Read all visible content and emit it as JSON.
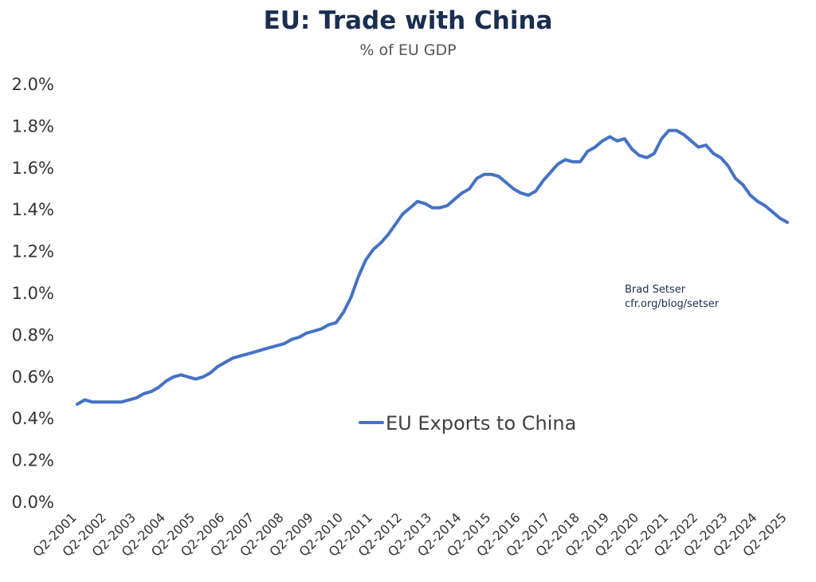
{
  "chart_data": {
    "type": "line",
    "title": "EU: Trade with China",
    "subtitle": "% of EU GDP",
    "xlabel": "",
    "ylabel": "",
    "ylim": [
      0,
      2.0
    ],
    "y_ticks": [
      "0.0%",
      "0.2%",
      "0.4%",
      "0.6%",
      "0.8%",
      "1.0%",
      "1.2%",
      "1.4%",
      "1.6%",
      "1.8%",
      "2.0%"
    ],
    "x_tick_labels": [
      "Q2-2001",
      "Q2-2002",
      "Q2-2003",
      "Q2-2004",
      "Q2-2005",
      "Q2-2006",
      "Q2-2007",
      "Q2-2008",
      "Q2-2009",
      "Q2-2010",
      "Q2-2011",
      "Q2-2012",
      "Q2-2013",
      "Q2-2014",
      "Q2-2015",
      "Q2-2016",
      "Q2-2017",
      "Q2-2018",
      "Q2-2019",
      "Q2-2020",
      "Q2-2021",
      "Q2-2022",
      "Q2-2023",
      "Q2-2024",
      "Q2-2025"
    ],
    "grid": false,
    "legend_position": "center-bottom",
    "annotation": [
      "Brad Setser",
      "cfr.org/blog/setser"
    ],
    "series": [
      {
        "name": "EU Exports to China",
        "color": "#4472c4",
        "x": [
          "Q2-2001",
          "Q3-2001",
          "Q4-2001",
          "Q1-2002",
          "Q2-2002",
          "Q3-2002",
          "Q4-2002",
          "Q1-2003",
          "Q2-2003",
          "Q3-2003",
          "Q4-2003",
          "Q1-2004",
          "Q2-2004",
          "Q3-2004",
          "Q4-2004",
          "Q1-2005",
          "Q2-2005",
          "Q3-2005",
          "Q4-2005",
          "Q1-2006",
          "Q2-2006",
          "Q3-2006",
          "Q4-2006",
          "Q1-2007",
          "Q2-2007",
          "Q3-2007",
          "Q4-2007",
          "Q1-2008",
          "Q2-2008",
          "Q3-2008",
          "Q4-2008",
          "Q1-2009",
          "Q2-2009",
          "Q3-2009",
          "Q4-2009",
          "Q1-2010",
          "Q2-2010",
          "Q3-2010",
          "Q4-2010",
          "Q1-2011",
          "Q2-2011",
          "Q3-2011",
          "Q4-2011",
          "Q1-2012",
          "Q2-2012",
          "Q3-2012",
          "Q4-2012",
          "Q1-2013",
          "Q2-2013",
          "Q3-2013",
          "Q4-2013",
          "Q1-2014",
          "Q2-2014",
          "Q3-2014",
          "Q4-2014",
          "Q1-2015",
          "Q2-2015",
          "Q3-2015",
          "Q4-2015",
          "Q1-2016",
          "Q2-2016",
          "Q3-2016",
          "Q4-2016",
          "Q1-2017",
          "Q2-2017",
          "Q3-2017",
          "Q4-2017",
          "Q1-2018",
          "Q2-2018",
          "Q3-2018",
          "Q4-2018",
          "Q1-2019",
          "Q2-2019",
          "Q3-2019",
          "Q4-2019",
          "Q1-2020",
          "Q2-2020",
          "Q3-2020",
          "Q4-2020",
          "Q1-2021",
          "Q2-2021",
          "Q3-2021",
          "Q4-2021",
          "Q1-2022",
          "Q2-2022",
          "Q3-2022",
          "Q4-2022",
          "Q1-2023",
          "Q2-2023",
          "Q3-2023",
          "Q4-2023",
          "Q1-2024",
          "Q2-2024",
          "Q3-2024",
          "Q4-2024",
          "Q1-2025",
          "Q2-2025"
        ],
        "values": [
          0.47,
          0.49,
          0.48,
          0.48,
          0.48,
          0.48,
          0.48,
          0.49,
          0.5,
          0.52,
          0.53,
          0.55,
          0.58,
          0.6,
          0.61,
          0.6,
          0.59,
          0.6,
          0.62,
          0.65,
          0.67,
          0.69,
          0.7,
          0.71,
          0.72,
          0.73,
          0.74,
          0.75,
          0.76,
          0.78,
          0.79,
          0.81,
          0.82,
          0.83,
          0.85,
          0.86,
          0.91,
          0.98,
          1.08,
          1.16,
          1.21,
          1.24,
          1.28,
          1.33,
          1.38,
          1.41,
          1.44,
          1.43,
          1.41,
          1.41,
          1.42,
          1.45,
          1.48,
          1.5,
          1.55,
          1.57,
          1.57,
          1.56,
          1.53,
          1.5,
          1.48,
          1.47,
          1.49,
          1.54,
          1.58,
          1.62,
          1.64,
          1.63,
          1.63,
          1.68,
          1.7,
          1.73,
          1.75,
          1.73,
          1.74,
          1.69,
          1.66,
          1.65,
          1.67,
          1.74,
          1.78,
          1.78,
          1.76,
          1.73,
          1.7,
          1.71,
          1.67,
          1.65,
          1.61,
          1.55,
          1.52,
          1.47,
          1.44,
          1.42,
          1.39,
          1.36,
          1.34
        ]
      }
    ]
  }
}
